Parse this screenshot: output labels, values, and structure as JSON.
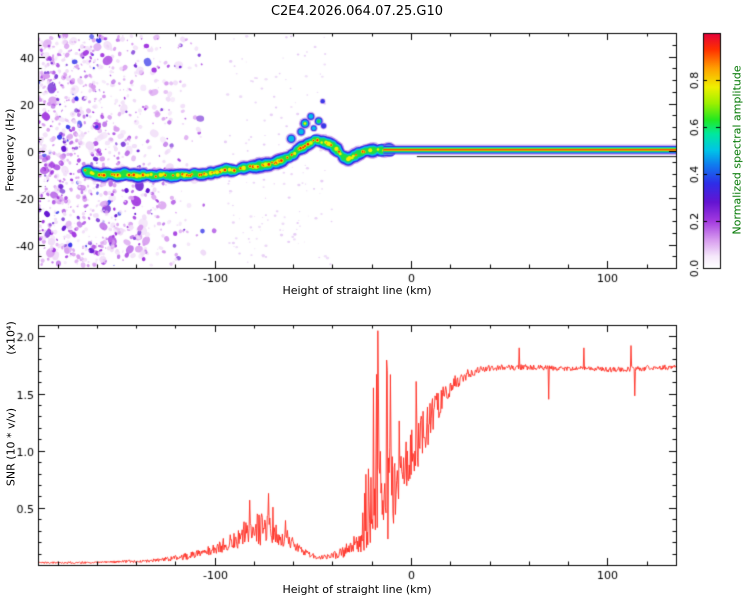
{
  "title": "C2E4.2026.064.07.25.G10",
  "labels": {
    "freq_axis": "Frequency (Hz)",
    "height_axis_top": "Height of straight line (km)",
    "height_axis_bottom": "Height of straight line (km)",
    "snr_axis": "SNR (10 * v/v)",
    "snr_scale": "(x10⁴)",
    "colorbar": "Normalized spectral amplitude"
  },
  "colors": {
    "axis": "#000000",
    "snr_line": "#ff2b20",
    "colorbar_label": "#007700",
    "background": "#ffffff"
  },
  "chart_data": [
    {
      "type": "heatmap",
      "title": "C2E4.2026.064.07.25.G10",
      "xlabel": "Height of straight line (km)",
      "ylabel": "Frequency (Hz)",
      "xlim": [
        -190,
        135
      ],
      "ylim": [
        -50,
        50
      ],
      "xticks": [
        -100,
        0,
        100
      ],
      "xminor_step": 20,
      "yticks": [
        -40,
        -20,
        0,
        20,
        40
      ],
      "yminor_step": 5,
      "grid": false,
      "colorbar": {
        "label": "Normalized spectral amplitude",
        "range": [
          0,
          1
        ],
        "ticks": [
          0.0,
          0.2,
          0.4,
          0.6,
          0.8
        ],
        "stops": [
          [
            0.0,
            "#ffffff"
          ],
          [
            0.05,
            "#f6e8fb"
          ],
          [
            0.12,
            "#d79bef"
          ],
          [
            0.2,
            "#a33ae0"
          ],
          [
            0.28,
            "#6414d2"
          ],
          [
            0.36,
            "#2e2ee8"
          ],
          [
            0.44,
            "#0f7df0"
          ],
          [
            0.5,
            "#00c4e8"
          ],
          [
            0.57,
            "#00e8a0"
          ],
          [
            0.63,
            "#22e822"
          ],
          [
            0.7,
            "#9cf000"
          ],
          [
            0.77,
            "#f0f000"
          ],
          [
            0.85,
            "#ffa000"
          ],
          [
            0.93,
            "#ff3000"
          ],
          [
            1.0,
            "#e4003c"
          ]
        ]
      },
      "noise": {
        "x_min": -190,
        "x_max": -95,
        "count": 2600,
        "sparse_count": 160
      },
      "ridge_path": [
        [
          -166,
          -8.5
        ],
        [
          -162,
          -9.5
        ],
        [
          -158,
          -10.5
        ],
        [
          -154,
          -10
        ],
        [
          -150,
          -10.8
        ],
        [
          -146,
          -10
        ],
        [
          -142,
          -10.6
        ],
        [
          -138,
          -11
        ],
        [
          -134,
          -10.2
        ],
        [
          -130,
          -10.8
        ],
        [
          -126,
          -10.2
        ],
        [
          -122,
          -10.8
        ],
        [
          -118,
          -10.3
        ],
        [
          -114,
          -10.6
        ],
        [
          -110,
          -10
        ],
        [
          -106,
          -10.4
        ],
        [
          -102,
          -9.6
        ],
        [
          -98,
          -9
        ],
        [
          -94,
          -8.2
        ],
        [
          -90,
          -8.6
        ],
        [
          -86,
          -7.6
        ],
        [
          -82,
          -7
        ],
        [
          -78,
          -6.6
        ],
        [
          -74,
          -6
        ],
        [
          -70,
          -5.2
        ],
        [
          -66,
          -4.2
        ],
        [
          -63,
          -3
        ],
        [
          -60,
          -1.5
        ],
        [
          -57,
          0.5
        ],
        [
          -54,
          2
        ],
        [
          -51,
          3.5
        ],
        [
          -49,
          4.5
        ],
        [
          -47,
          4
        ],
        [
          -44,
          3.4
        ],
        [
          -42,
          3
        ],
        [
          -40,
          2.2
        ],
        [
          -38,
          0.5
        ],
        [
          -36,
          -1.5
        ],
        [
          -34,
          -2.8
        ],
        [
          -32,
          -3.4
        ],
        [
          -30,
          -3
        ],
        [
          -28,
          -2
        ],
        [
          -26,
          -1
        ],
        [
          -23,
          -0.3
        ],
        [
          -20,
          0.1
        ],
        [
          -16,
          0.3
        ],
        [
          -12,
          0.2
        ],
        [
          -10,
          0.2
        ]
      ],
      "ridge_layers": [
        [
          "#a864e0",
          2.3,
          0.85,
          0.5
        ],
        [
          "#2e2ee8",
          1.9,
          1,
          0.92
        ],
        [
          "#00c4e8",
          1.45,
          1,
          0.95
        ],
        [
          "#22dd44",
          1.0,
          1,
          0.95
        ]
      ],
      "hotspot": {
        "yellow": "#f0f000",
        "red": "#ff2000",
        "prob": 0.5,
        "red_prob": 0.6
      },
      "ridge_blobs": [
        [
          -61,
          5,
          3,
          2
        ],
        [
          -56,
          8,
          2.6,
          2
        ],
        [
          -54,
          11.5,
          3.2,
          4
        ],
        [
          -51,
          14.5,
          2.4,
          2
        ],
        [
          -49.5,
          9.5,
          2,
          2
        ],
        [
          -47,
          12.5,
          2.6,
          3
        ],
        [
          -44.5,
          10.5,
          1.8,
          1
        ],
        [
          -45,
          21,
          1.5,
          1
        ]
      ],
      "signal_band": {
        "x0": -14,
        "x1": 135,
        "center": 0.3,
        "layers": [
          [
            "#a864e0",
            2.2
          ],
          [
            "#2e2ee8",
            1.6
          ],
          [
            "#00c4e8",
            1.2
          ],
          [
            "#22dd44",
            0.85
          ],
          [
            "#f0f000",
            0.5
          ],
          [
            "#ff2000",
            0.25
          ]
        ],
        "dark_line": {
          "x0": 3,
          "x1": 135,
          "freq": -2.6,
          "color": "#161616"
        }
      }
    },
    {
      "type": "line",
      "xlabel": "Height of straight line (km)",
      "ylabel": "SNR (10 * v/v)",
      "scale_note": "(x10⁴)",
      "xlim": [
        -190,
        135
      ],
      "ylim": [
        0,
        2.1
      ],
      "xticks": [
        -100,
        0,
        100
      ],
      "xminor_step": 20,
      "yticks": [
        0.5,
        1.0,
        1.5,
        2.0
      ],
      "yminor_step": 0.1,
      "color": "#ff2b20",
      "envelope": [
        [
          -190,
          0.02,
          0.015
        ],
        [
          -160,
          0.02,
          0.02
        ],
        [
          -145,
          0.03,
          0.025
        ],
        [
          -130,
          0.04,
          0.03
        ],
        [
          -120,
          0.06,
          0.05
        ],
        [
          -110,
          0.09,
          0.07
        ],
        [
          -100,
          0.14,
          0.1
        ],
        [
          -92,
          0.2,
          0.14
        ],
        [
          -85,
          0.26,
          0.2
        ],
        [
          -78,
          0.32,
          0.3
        ],
        [
          -72,
          0.3,
          0.28
        ],
        [
          -66,
          0.24,
          0.16
        ],
        [
          -60,
          0.17,
          0.1
        ],
        [
          -54,
          0.11,
          0.06
        ],
        [
          -48,
          0.07,
          0.04
        ],
        [
          -42,
          0.07,
          0.05
        ],
        [
          -36,
          0.1,
          0.09
        ],
        [
          -30,
          0.15,
          0.16
        ],
        [
          -26,
          0.22,
          0.3
        ],
        [
          -22,
          0.35,
          0.55
        ],
        [
          -19,
          0.5,
          0.85
        ],
        [
          -16,
          0.6,
          1.0
        ],
        [
          -13,
          0.6,
          0.95
        ],
        [
          -10,
          0.7,
          0.8
        ],
        [
          -7,
          0.8,
          0.7
        ],
        [
          -4,
          0.9,
          0.6
        ],
        [
          -1,
          1.0,
          0.55
        ],
        [
          2,
          1.05,
          0.5
        ],
        [
          5,
          1.1,
          0.45
        ],
        [
          8,
          1.2,
          0.4
        ],
        [
          12,
          1.35,
          0.3
        ],
        [
          16,
          1.47,
          0.22
        ],
        [
          20,
          1.56,
          0.16
        ],
        [
          25,
          1.63,
          0.11
        ],
        [
          30,
          1.68,
          0.08
        ],
        [
          36,
          1.71,
          0.06
        ],
        [
          45,
          1.73,
          0.05
        ],
        [
          60,
          1.73,
          0.05
        ],
        [
          75,
          1.72,
          0.04
        ],
        [
          90,
          1.72,
          0.04
        ],
        [
          105,
          1.71,
          0.05
        ],
        [
          120,
          1.72,
          0.05
        ],
        [
          135,
          1.73,
          0.05
        ]
      ],
      "burst_regions": [
        [
          -90,
          -58,
          0.05
        ],
        [
          -24,
          4,
          0.06
        ]
      ],
      "spikes": [
        [
          -17,
          2.05
        ],
        [
          -19,
          1.55
        ],
        [
          -12,
          1.7
        ],
        [
          55,
          1.9
        ],
        [
          70,
          1.45
        ],
        [
          88,
          1.9
        ],
        [
          112,
          1.92
        ],
        [
          114,
          1.48
        ]
      ]
    }
  ]
}
